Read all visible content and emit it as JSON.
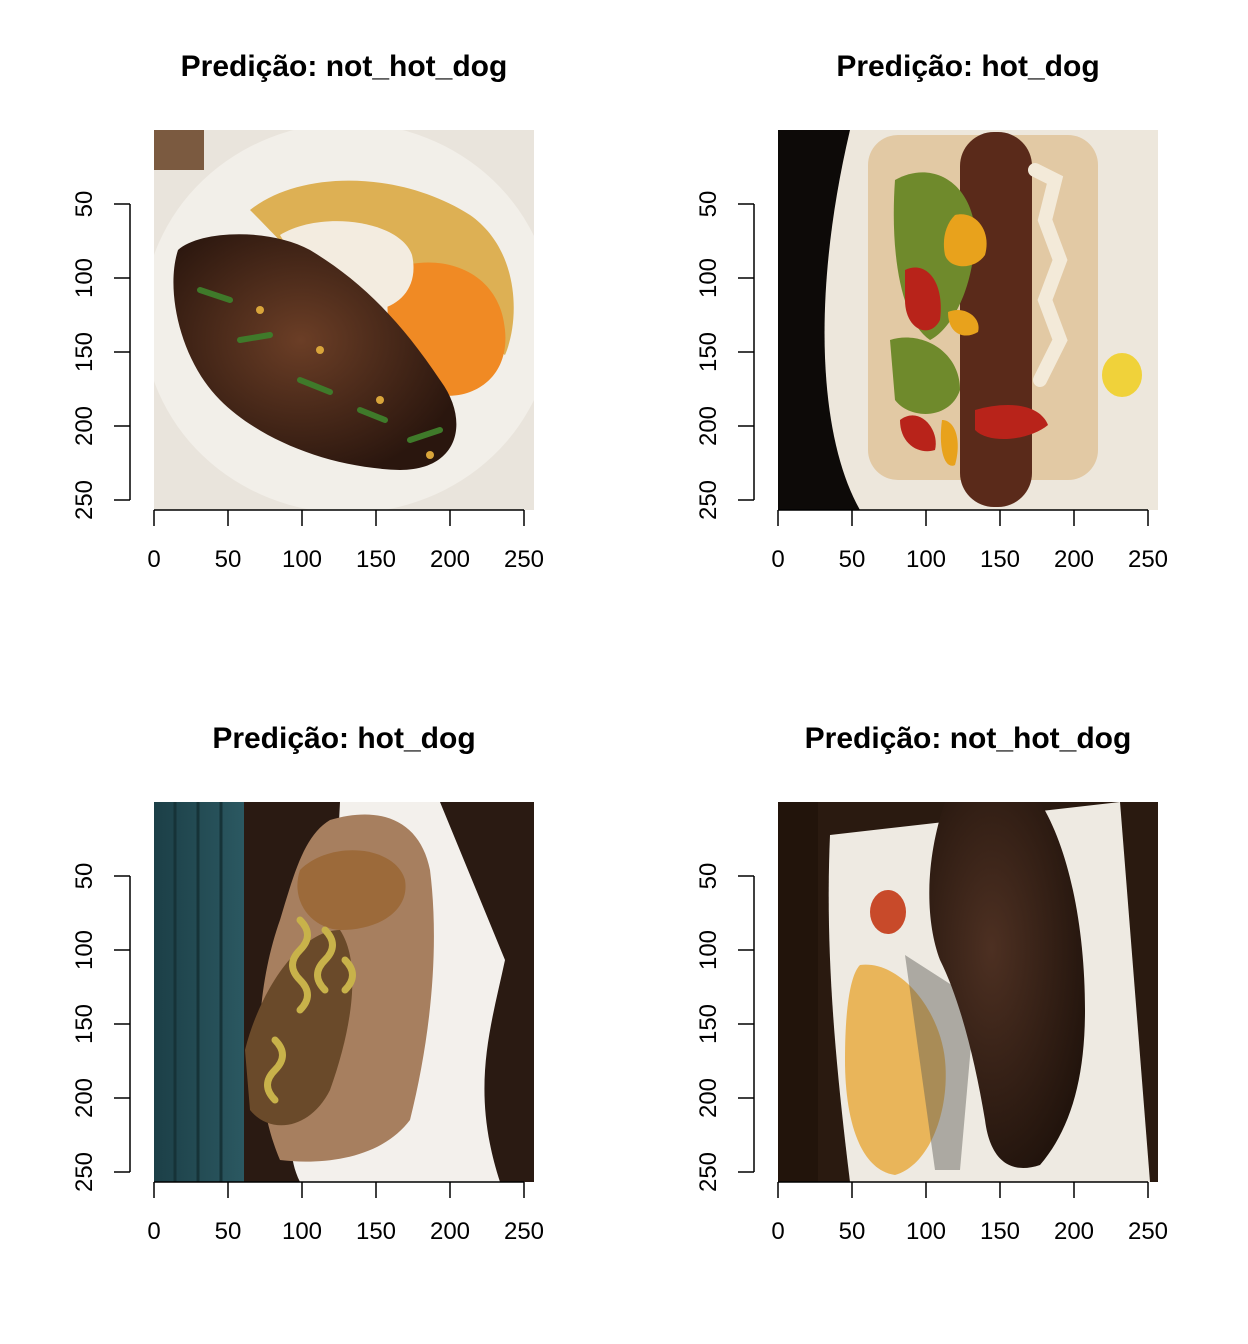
{
  "chart_data": [
    {
      "type": "image",
      "title": "Predição: not_hot_dog",
      "x_ticks": [
        0,
        50,
        100,
        150,
        200,
        250
      ],
      "y_ticks": [
        50,
        100,
        150,
        200,
        250
      ],
      "xlim": [
        0,
        256
      ],
      "ylim": [
        256,
        0
      ],
      "image_content": "steak-with-sauces",
      "colors": {
        "background": "#e9e4dc",
        "plate": "#f2efe9",
        "meat": "#4a2c1f",
        "sauce": "#f08a24",
        "garnish": "#d9a53a"
      }
    },
    {
      "type": "image",
      "title": "Predição: hot_dog",
      "x_ticks": [
        0,
        50,
        100,
        150,
        200,
        250
      ],
      "y_ticks": [
        50,
        100,
        150,
        200,
        250
      ],
      "xlim": [
        0,
        256
      ],
      "ylim": [
        256,
        0
      ],
      "image_content": "hot-dog-on-plate",
      "colors": {
        "background": "#0d0a08",
        "plate": "#ede7dc",
        "bun": "#e2c9a4",
        "sausage": "#5a2a1a",
        "relish": "#6f8a2c",
        "ketchup": "#b8231a",
        "mustard": "#e8a21c"
      }
    },
    {
      "type": "image",
      "title": "Predição: hot_dog",
      "x_ticks": [
        0,
        50,
        100,
        150,
        200,
        250
      ],
      "y_ticks": [
        50,
        100,
        150,
        200,
        250
      ],
      "xlim": [
        0,
        256
      ],
      "ylim": [
        256,
        0
      ],
      "image_content": "wrapped-sandwich",
      "colors": {
        "background": "#2a1a12",
        "wall": "#1f4a52",
        "paper": "#f3f0ec",
        "wrap": "#a77f5f",
        "bun": "#9c6a3a",
        "mustard": "#c8b24a"
      }
    },
    {
      "type": "image",
      "title": "Predição: not_hot_dog",
      "x_ticks": [
        0,
        50,
        100,
        150,
        200,
        250
      ],
      "y_ticks": [
        50,
        100,
        150,
        200,
        250
      ],
      "xlim": [
        0,
        256
      ],
      "ylim": [
        256,
        0
      ],
      "image_content": "steak-on-square-plate",
      "colors": {
        "background": "#2a1a10",
        "plate": "#eeeae2",
        "meat": "#3a2418",
        "sauce": "#e9b55a",
        "tomato": "#c84a2a"
      }
    }
  ]
}
